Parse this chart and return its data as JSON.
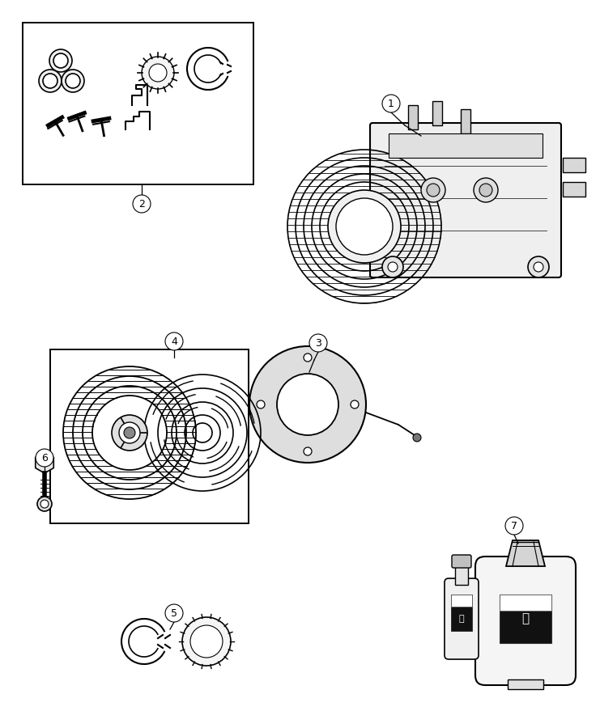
{
  "bg": "#ffffff",
  "lc": "#000000",
  "fw": 7.41,
  "fh": 9.0,
  "dpi": 100
}
